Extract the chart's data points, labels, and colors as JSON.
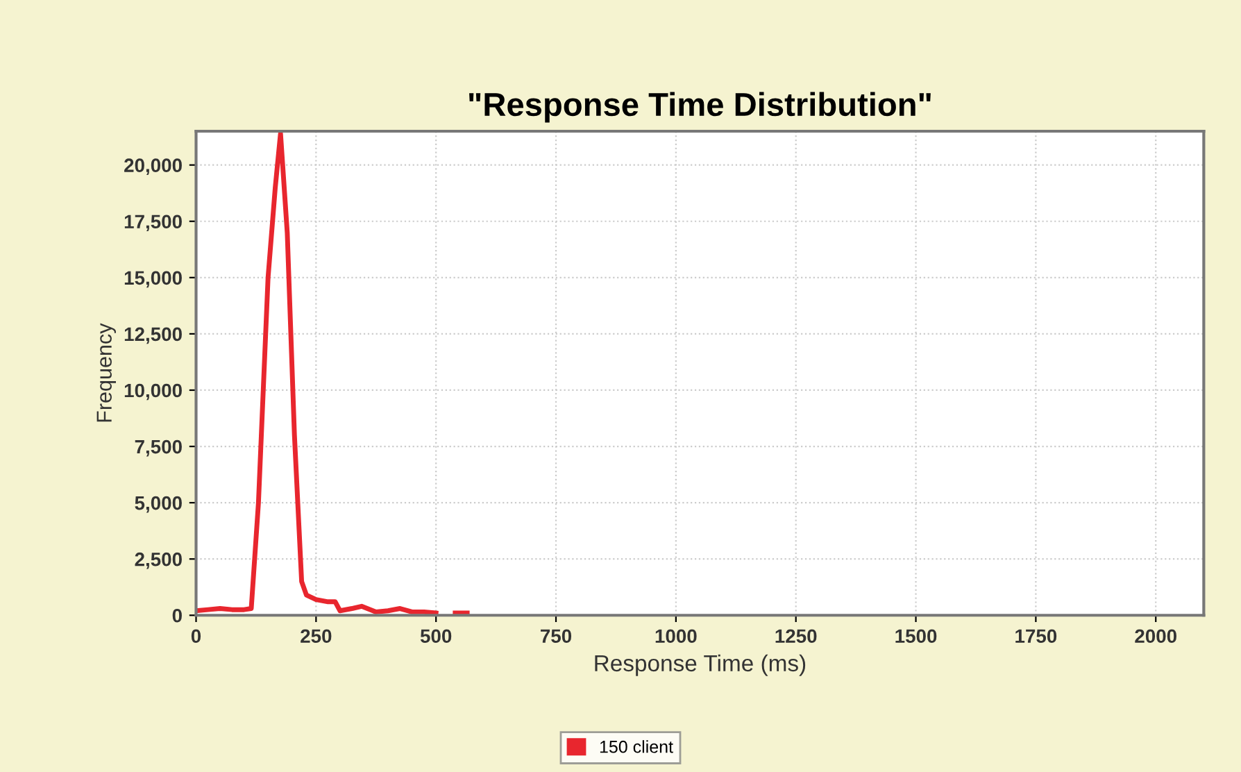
{
  "chart_data": {
    "type": "line",
    "title": "\"Response Time Distribution\"",
    "xlabel": "Response Time (ms)",
    "ylabel": "Frequency",
    "x": [
      0,
      25,
      50,
      75,
      100,
      115,
      130,
      150,
      165,
      176,
      190,
      205,
      220,
      230,
      250,
      275,
      290,
      300,
      325,
      345,
      375,
      400,
      425,
      450,
      475,
      500,
      520,
      540,
      565
    ],
    "series": [
      {
        "name": "150 client",
        "color": "#e8262e",
        "values": [
          200,
          250,
          300,
          250,
          250,
          300,
          5000,
          15000,
          19000,
          21400,
          17000,
          8000,
          1500,
          900,
          700,
          600,
          600,
          200,
          300,
          400,
          150,
          200,
          300,
          150,
          150,
          100,
          null,
          100,
          100
        ]
      }
    ],
    "xlim": [
      0,
      2100
    ],
    "xticks": [
      0,
      250,
      500,
      750,
      1000,
      1250,
      1500,
      1750,
      2000
    ],
    "ylim": [
      0,
      21500
    ],
    "yticks": [
      {
        "value": 0,
        "label": "0"
      },
      {
        "value": 2500,
        "label": "2,500"
      },
      {
        "value": 5000,
        "label": "5,000"
      },
      {
        "value": 7500,
        "label": "7,500"
      },
      {
        "value": 10000,
        "label": "10,000"
      },
      {
        "value": 12500,
        "label": "12,500"
      },
      {
        "value": 15000,
        "label": "15,000"
      },
      {
        "value": 17500,
        "label": "17,500"
      },
      {
        "value": 20000,
        "label": "20,000"
      }
    ],
    "grid": true,
    "legend": "bottom",
    "marker": "none",
    "line_style": "solid"
  }
}
